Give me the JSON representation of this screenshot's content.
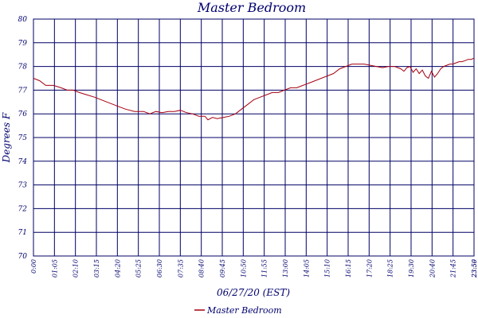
{
  "chart_data": {
    "type": "line",
    "title": "Master Bedroom",
    "xlabel": "06/27/20 (EST)",
    "ylabel": "Degrees F",
    "ylim": [
      70,
      80
    ],
    "y_ticks": [
      "70",
      "71",
      "72",
      "73",
      "74",
      "75",
      "76",
      "77",
      "78",
      "79",
      "80"
    ],
    "x_ticks": [
      "0:00",
      "01:05",
      "02:10",
      "03:15",
      "04:20",
      "05:25",
      "06:30",
      "07:35",
      "08:40",
      "09:45",
      "10:50",
      "11:55",
      "13:00",
      "14:05",
      "15:10",
      "16:15",
      "17:20",
      "18:25",
      "19:30",
      "20:40",
      "21:45",
      "23:50",
      "23:59"
    ],
    "grid": true,
    "legend": "bottom-center",
    "series": [
      {
        "name": "Master Bedroom",
        "color": "#a50010",
        "x_minutes": [
          0,
          20,
          40,
          65,
          90,
          110,
          130,
          150,
          175,
          200,
          220,
          240,
          260,
          280,
          300,
          330,
          360,
          380,
          400,
          420,
          440,
          460,
          480,
          500,
          520,
          540,
          560,
          570,
          585,
          600,
          620,
          640,
          660,
          680,
          700,
          720,
          740,
          760,
          780,
          800,
          820,
          840,
          860,
          880,
          900,
          920,
          940,
          960,
          980,
          1000,
          1020,
          1040,
          1060,
          1080,
          1100,
          1120,
          1140,
          1160,
          1180,
          1200,
          1210,
          1220,
          1230,
          1240,
          1250,
          1260,
          1270,
          1280,
          1290,
          1300,
          1310,
          1320,
          1330,
          1340,
          1350,
          1360,
          1370,
          1380,
          1390,
          1400,
          1410,
          1420,
          1430,
          1439
        ],
        "y_values": [
          77.5,
          77.4,
          77.2,
          77.2,
          77.1,
          77.0,
          77.0,
          76.9,
          76.8,
          76.7,
          76.6,
          76.5,
          76.4,
          76.3,
          76.2,
          76.1,
          76.1,
          76.0,
          76.1,
          76.05,
          76.1,
          76.1,
          76.15,
          76.05,
          76.0,
          75.9,
          75.9,
          75.75,
          75.85,
          75.8,
          75.85,
          75.9,
          76.0,
          76.2,
          76.4,
          76.6,
          76.7,
          76.8,
          76.9,
          76.9,
          77.0,
          77.1,
          77.1,
          77.2,
          77.3,
          77.4,
          77.5,
          77.6,
          77.7,
          77.9,
          78.0,
          78.1,
          78.1,
          78.1,
          78.05,
          78.0,
          77.95,
          78.0,
          78.0,
          77.9,
          77.8,
          77.95,
          78.0,
          77.75,
          77.9,
          77.7,
          77.85,
          77.6,
          77.5,
          77.8,
          77.55,
          77.7,
          77.9,
          78.0,
          78.05,
          78.1,
          78.1,
          78.15,
          78.2,
          78.2,
          78.25,
          78.3,
          78.3,
          78.35
        ]
      }
    ]
  }
}
